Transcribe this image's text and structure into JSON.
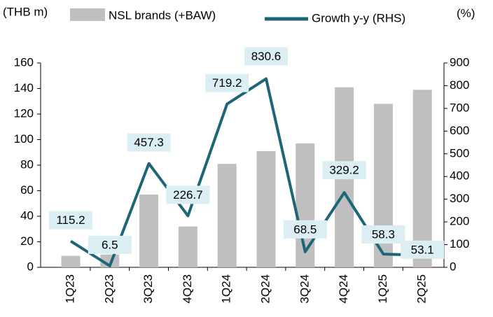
{
  "chart_data": {
    "type": "bar_line",
    "y_unit_label": "(THB m)",
    "y2_unit_label": "(%)",
    "categories": [
      "1Q23",
      "2Q23",
      "3Q23",
      "4Q23",
      "1Q24",
      "2Q24",
      "3Q24",
      "4Q24",
      "1Q25",
      "2Q25"
    ],
    "series": [
      {
        "name": "NSL brands (+BAW)",
        "type": "bar",
        "color": "#bfbfbf",
        "axis": "y",
        "values": [
          9,
          10,
          57,
          32,
          81,
          91,
          97,
          141,
          128,
          139
        ]
      },
      {
        "name": "Growth y-y (RHS)",
        "type": "line",
        "color": "#1d6577",
        "axis": "y2",
        "values": [
          115.2,
          6.5,
          457.3,
          226.7,
          719.2,
          830.6,
          68.5,
          329.2,
          58.3,
          53.1
        ]
      }
    ],
    "ylim": [
      0,
      160
    ],
    "yticks": [
      0,
      20,
      40,
      60,
      80,
      100,
      120,
      140,
      160
    ],
    "y2lim": [
      0,
      900
    ],
    "y2ticks": [
      0,
      100,
      200,
      300,
      400,
      500,
      600,
      700,
      800,
      900
    ],
    "data_labels": true
  }
}
